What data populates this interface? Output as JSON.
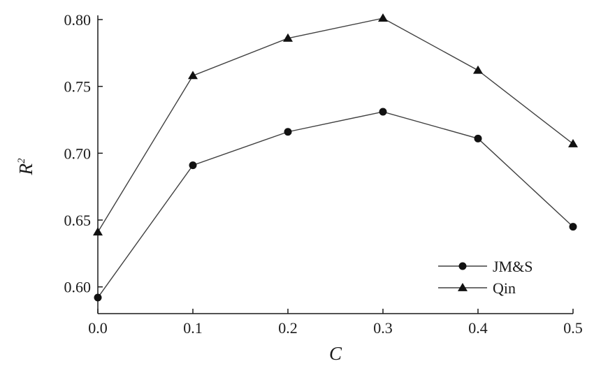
{
  "chart_data": {
    "type": "line",
    "xlabel": "C",
    "ylabel": "R",
    "ylabel_superscript": "2",
    "xlim": [
      0.0,
      0.5
    ],
    "ylim": [
      0.58,
      0.8
    ],
    "x_ticks": [
      "0.0",
      "0.1",
      "0.2",
      "0.3",
      "0.4",
      "0.5"
    ],
    "y_ticks": [
      "0.60",
      "0.65",
      "0.70",
      "0.75",
      "0.80"
    ],
    "grid": false,
    "legend_position": "bottom-right",
    "x": [
      0.0,
      0.1,
      0.2,
      0.3,
      0.4,
      0.5
    ],
    "series": [
      {
        "name": "JM&S",
        "marker": "circle",
        "values": [
          0.592,
          0.691,
          0.716,
          0.731,
          0.711,
          0.645
        ]
      },
      {
        "name": "Qin",
        "marker": "triangle",
        "values": [
          0.641,
          0.758,
          0.786,
          0.801,
          0.762,
          0.707
        ]
      }
    ],
    "colors": {
      "line": "#404040",
      "marker": "#111111",
      "axis": "#1a1a1a"
    }
  }
}
